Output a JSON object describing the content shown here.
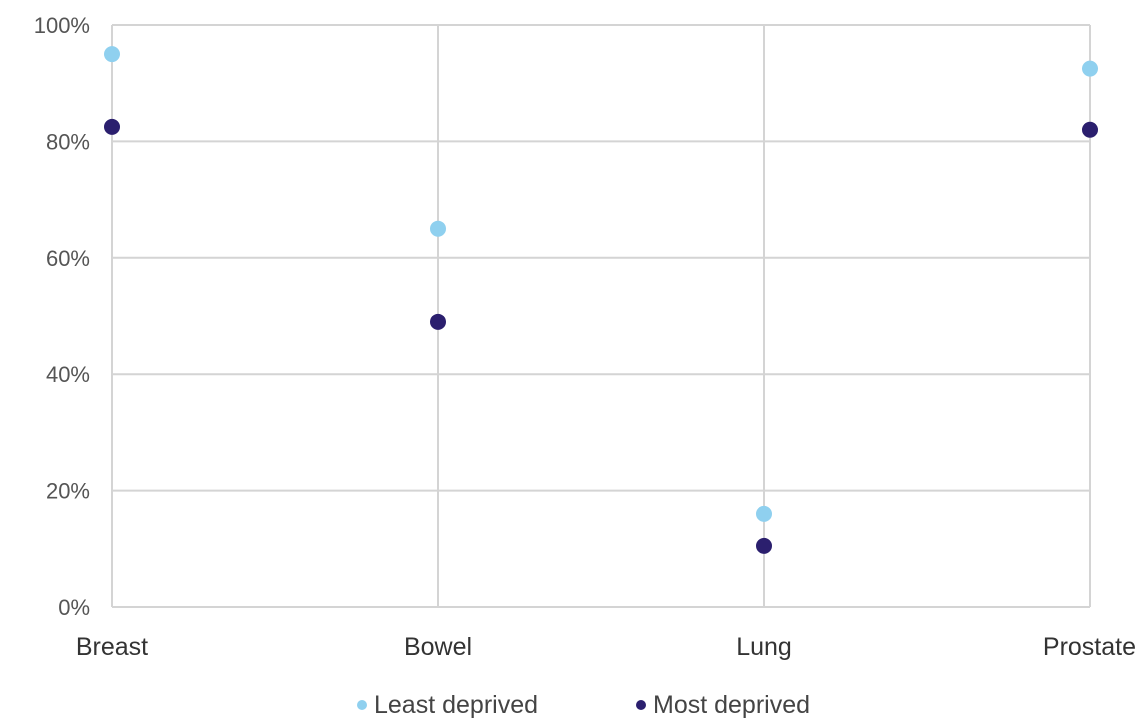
{
  "chart_data": {
    "type": "scatter",
    "title": "",
    "xlabel": "",
    "ylabel": "",
    "categories": [
      "Breast",
      "Bowel",
      "Lung",
      "Prostate"
    ],
    "series": [
      {
        "name": "Least deprived",
        "color": "#8fd0ef",
        "values": [
          95,
          65,
          16,
          92.5
        ]
      },
      {
        "name": "Most deprived",
        "color": "#2b1f6e",
        "values": [
          82.5,
          49,
          10.5,
          82
        ]
      }
    ],
    "ylim": [
      0,
      100
    ],
    "yticks": [
      0,
      20,
      40,
      60,
      80,
      100
    ],
    "ytick_labels": [
      "0%",
      "20%",
      "40%",
      "60%",
      "80%",
      "100%"
    ],
    "grid": true,
    "legend": "bottom-center"
  }
}
